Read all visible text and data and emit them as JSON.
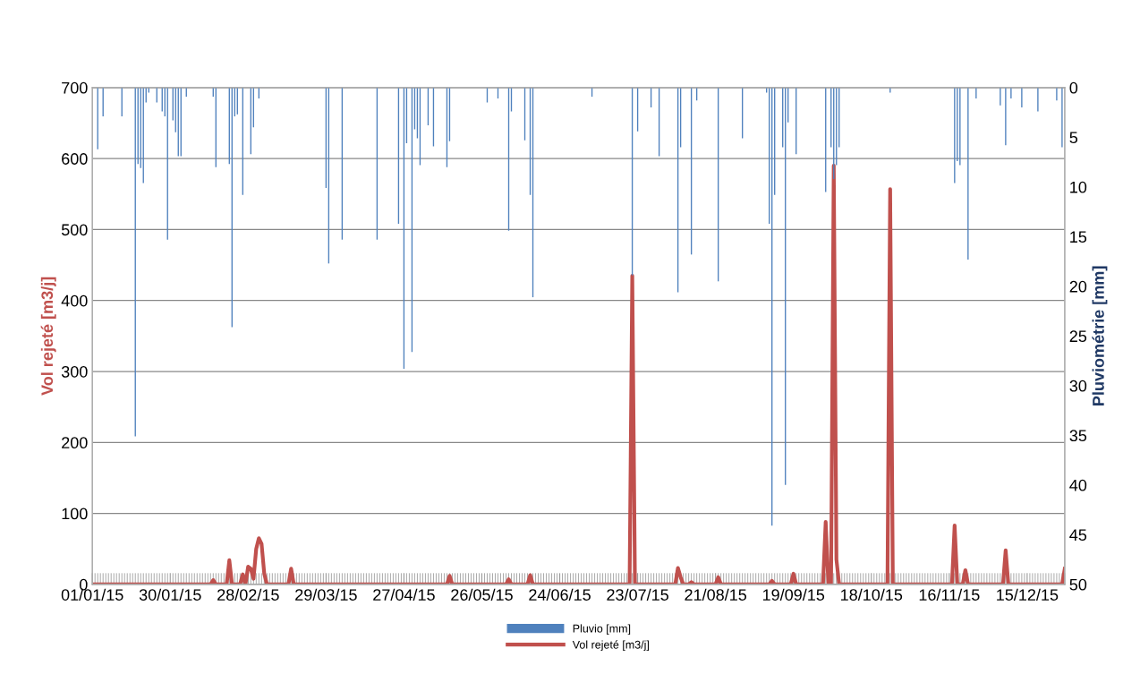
{
  "chart_data": {
    "type": "line",
    "ylabel": "Vol rejeté [m3/j]",
    "y2label": "Pluviométrie [mm]",
    "xlim": [
      "2015-01-01",
      "2015-12-29"
    ],
    "xticks": [
      {
        "value": "2015-01-01",
        "label": "01/01/15"
      },
      {
        "value": "2015-01-30",
        "label": "30/01/15"
      },
      {
        "value": "2015-02-28",
        "label": "28/02/15"
      },
      {
        "value": "2015-03-29",
        "label": "29/03/15"
      },
      {
        "value": "2015-04-27",
        "label": "27/04/15"
      },
      {
        "value": "2015-05-26",
        "label": "26/05/15"
      },
      {
        "value": "2015-06-24",
        "label": "24/06/15"
      },
      {
        "value": "2015-07-23",
        "label": "23/07/15"
      },
      {
        "value": "2015-08-21",
        "label": "21/08/15"
      },
      {
        "value": "2015-09-19",
        "label": "19/09/15"
      },
      {
        "value": "2015-10-18",
        "label": "18/10/15"
      },
      {
        "value": "2015-11-16",
        "label": "16/11/15"
      },
      {
        "value": "2015-12-15",
        "label": "15/12/15"
      }
    ],
    "ylim": [
      0,
      700
    ],
    "yticks": [
      0,
      100,
      200,
      300,
      400,
      500,
      600,
      700
    ],
    "y2lim": [
      50,
      0
    ],
    "y2ticks": [
      0,
      5,
      10,
      15,
      20,
      25,
      30,
      35,
      40,
      45,
      50
    ],
    "grid": "y",
    "legend": "bottom",
    "series": [
      {
        "name": "Pluvio [mm]",
        "type": "bar",
        "axis": "y2",
        "color": "#4f81bd",
        "x": [
          "2015-01-03",
          "2015-01-05",
          "2015-01-12",
          "2015-01-17",
          "2015-01-18",
          "2015-01-19",
          "2015-01-20",
          "2015-01-21",
          "2015-01-22",
          "2015-01-25",
          "2015-01-27",
          "2015-01-28",
          "2015-01-29",
          "2015-01-31",
          "2015-02-01",
          "2015-02-02",
          "2015-02-03",
          "2015-02-05",
          "2015-02-15",
          "2015-02-16",
          "2015-02-21",
          "2015-02-22",
          "2015-02-23",
          "2015-02-24",
          "2015-02-26",
          "2015-03-01",
          "2015-03-02",
          "2015-03-04",
          "2015-03-29",
          "2015-03-30",
          "2015-04-04",
          "2015-04-17",
          "2015-04-25",
          "2015-04-27",
          "2015-04-28",
          "2015-04-30",
          "2015-05-01",
          "2015-05-02",
          "2015-05-03",
          "2015-05-06",
          "2015-05-08",
          "2015-05-13",
          "2015-05-14",
          "2015-05-28",
          "2015-06-01",
          "2015-06-05",
          "2015-06-06",
          "2015-06-11",
          "2015-06-13",
          "2015-06-14",
          "2015-07-06",
          "2015-07-21",
          "2015-07-23",
          "2015-07-28",
          "2015-07-31",
          "2015-08-07",
          "2015-08-08",
          "2015-08-12",
          "2015-08-14",
          "2015-08-22",
          "2015-08-31",
          "2015-09-09",
          "2015-09-10",
          "2015-09-11",
          "2015-09-12",
          "2015-09-15",
          "2015-09-16",
          "2015-09-17",
          "2015-09-20",
          "2015-10-01",
          "2015-10-03",
          "2015-10-04",
          "2015-10-05",
          "2015-10-06",
          "2015-10-25",
          "2015-11-18",
          "2015-11-19",
          "2015-11-20",
          "2015-11-23",
          "2015-11-26",
          "2015-12-05",
          "2015-12-07",
          "2015-12-09",
          "2015-12-13",
          "2015-12-19",
          "2015-12-26",
          "2015-12-28"
        ],
        "values": [
          6.2,
          2.9,
          2.9,
          35.1,
          7.7,
          8.1,
          9.6,
          1.5,
          0.5,
          1.5,
          2.4,
          2.9,
          15.3,
          3.3,
          4.5,
          6.9,
          6.9,
          0.9,
          0.9,
          8.0,
          7.7,
          24.1,
          2.9,
          2.7,
          10.8,
          6.7,
          4.0,
          1.1,
          10.1,
          17.7,
          15.3,
          15.3,
          13.7,
          28.3,
          5.6,
          26.6,
          4.2,
          5.1,
          7.8,
          3.8,
          5.9,
          8.0,
          5.4,
          1.5,
          1.1,
          14.4,
          2.4,
          5.3,
          10.8,
          21.1,
          0.9,
          18.9,
          4.4,
          2.0,
          6.9,
          20.6,
          6.0,
          16.8,
          1.3,
          19.5,
          5.1,
          0.5,
          13.7,
          44.1,
          10.8,
          6.0,
          40.0,
          3.5,
          6.7,
          10.5,
          6.0,
          9.2,
          7.8,
          6.0,
          0.5,
          9.6,
          7.4,
          7.8,
          17.3,
          1.1,
          1.8,
          5.8,
          1.1,
          2.0,
          2.4,
          1.3,
          6.0
        ]
      },
      {
        "name": "Vol rejeté [m3/j]",
        "color": "#c0504d",
        "x": [
          "2015-01-01",
          "2015-02-14",
          "2015-02-15",
          "2015-02-16",
          "2015-02-20",
          "2015-02-21",
          "2015-02-22",
          "2015-02-25",
          "2015-02-26",
          "2015-02-27",
          "2015-02-28",
          "2015-03-01",
          "2015-03-02",
          "2015-03-03",
          "2015-03-04",
          "2015-03-05",
          "2015-03-06",
          "2015-03-07",
          "2015-03-15",
          "2015-03-16",
          "2015-03-17",
          "2015-05-13",
          "2015-05-14",
          "2015-05-15",
          "2015-06-04",
          "2015-06-05",
          "2015-06-06",
          "2015-06-12",
          "2015-06-13",
          "2015-06-14",
          "2015-07-20",
          "2015-07-21",
          "2015-07-22",
          "2015-08-06",
          "2015-08-07",
          "2015-08-08",
          "2015-08-09",
          "2015-08-11",
          "2015-08-12",
          "2015-08-13",
          "2015-08-21",
          "2015-08-22",
          "2015-08-23",
          "2015-09-10",
          "2015-09-11",
          "2015-09-12",
          "2015-09-18",
          "2015-09-19",
          "2015-09-20",
          "2015-09-30",
          "2015-10-01",
          "2015-10-02",
          "2015-10-03",
          "2015-10-04",
          "2015-10-05",
          "2015-10-06",
          "2015-10-24",
          "2015-10-25",
          "2015-10-26",
          "2015-11-17",
          "2015-11-18",
          "2015-11-19",
          "2015-11-21",
          "2015-11-22",
          "2015-11-23",
          "2015-12-06",
          "2015-12-07",
          "2015-12-08",
          "2015-12-28",
          "2015-12-29"
        ],
        "values": [
          0,
          0,
          6,
          0,
          0,
          34,
          0,
          0,
          14,
          0,
          25,
          22,
          8,
          50,
          65,
          57,
          15,
          0,
          0,
          22,
          0,
          0,
          12,
          0,
          0,
          7,
          0,
          0,
          13,
          0,
          0,
          435,
          0,
          0,
          23,
          10,
          0,
          0,
          3,
          0,
          0,
          10,
          0,
          0,
          5,
          0,
          0,
          15,
          0,
          0,
          88,
          0,
          0,
          590,
          35,
          0,
          0,
          557,
          0,
          0,
          83,
          0,
          0,
          20,
          0,
          0,
          48,
          0,
          0,
          22
        ]
      }
    ]
  }
}
